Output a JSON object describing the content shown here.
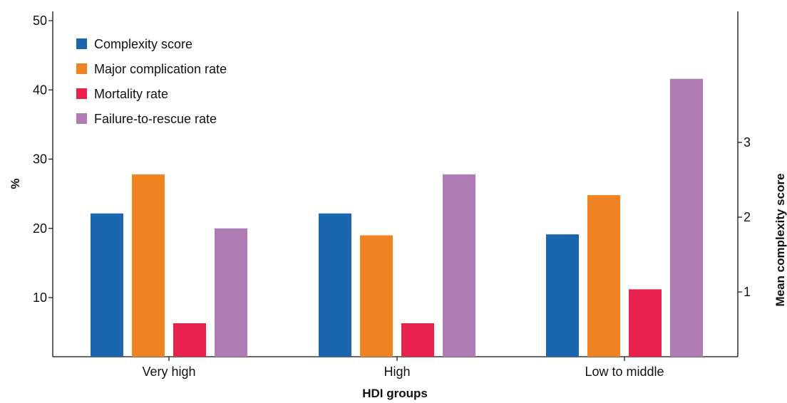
{
  "chart_data": {
    "type": "bar",
    "xlabel": "HDI groups",
    "ylabel": "%",
    "y2label": "Mean complexity score",
    "categories": [
      "Very high",
      "High",
      "Low to middle"
    ],
    "ylim": [
      0,
      50
    ],
    "yticks": [
      "10",
      "20",
      "30",
      "40",
      "50"
    ],
    "y2lim": [
      0,
      4.5
    ],
    "y2ticks": [
      "1",
      "2",
      "3"
    ],
    "series": [
      {
        "name": "Complexity score",
        "axis": "right",
        "color": "#1a67b0",
        "values": [
          2.05,
          2.05,
          1.77
        ]
      },
      {
        "name": "Major complication rate",
        "axis": "left",
        "color": "#f08423",
        "values": [
          27.8,
          19.0,
          24.8
        ]
      },
      {
        "name": "Mortality rate",
        "axis": "left",
        "color": "#e8214f",
        "values": [
          6.3,
          6.3,
          11.2
        ]
      },
      {
        "name": "Failure-to-rescue rate",
        "axis": "left",
        "color": "#b07cb5",
        "values": [
          20.0,
          27.8,
          41.6
        ]
      }
    ],
    "legend_position": "top-left",
    "grid": false
  }
}
